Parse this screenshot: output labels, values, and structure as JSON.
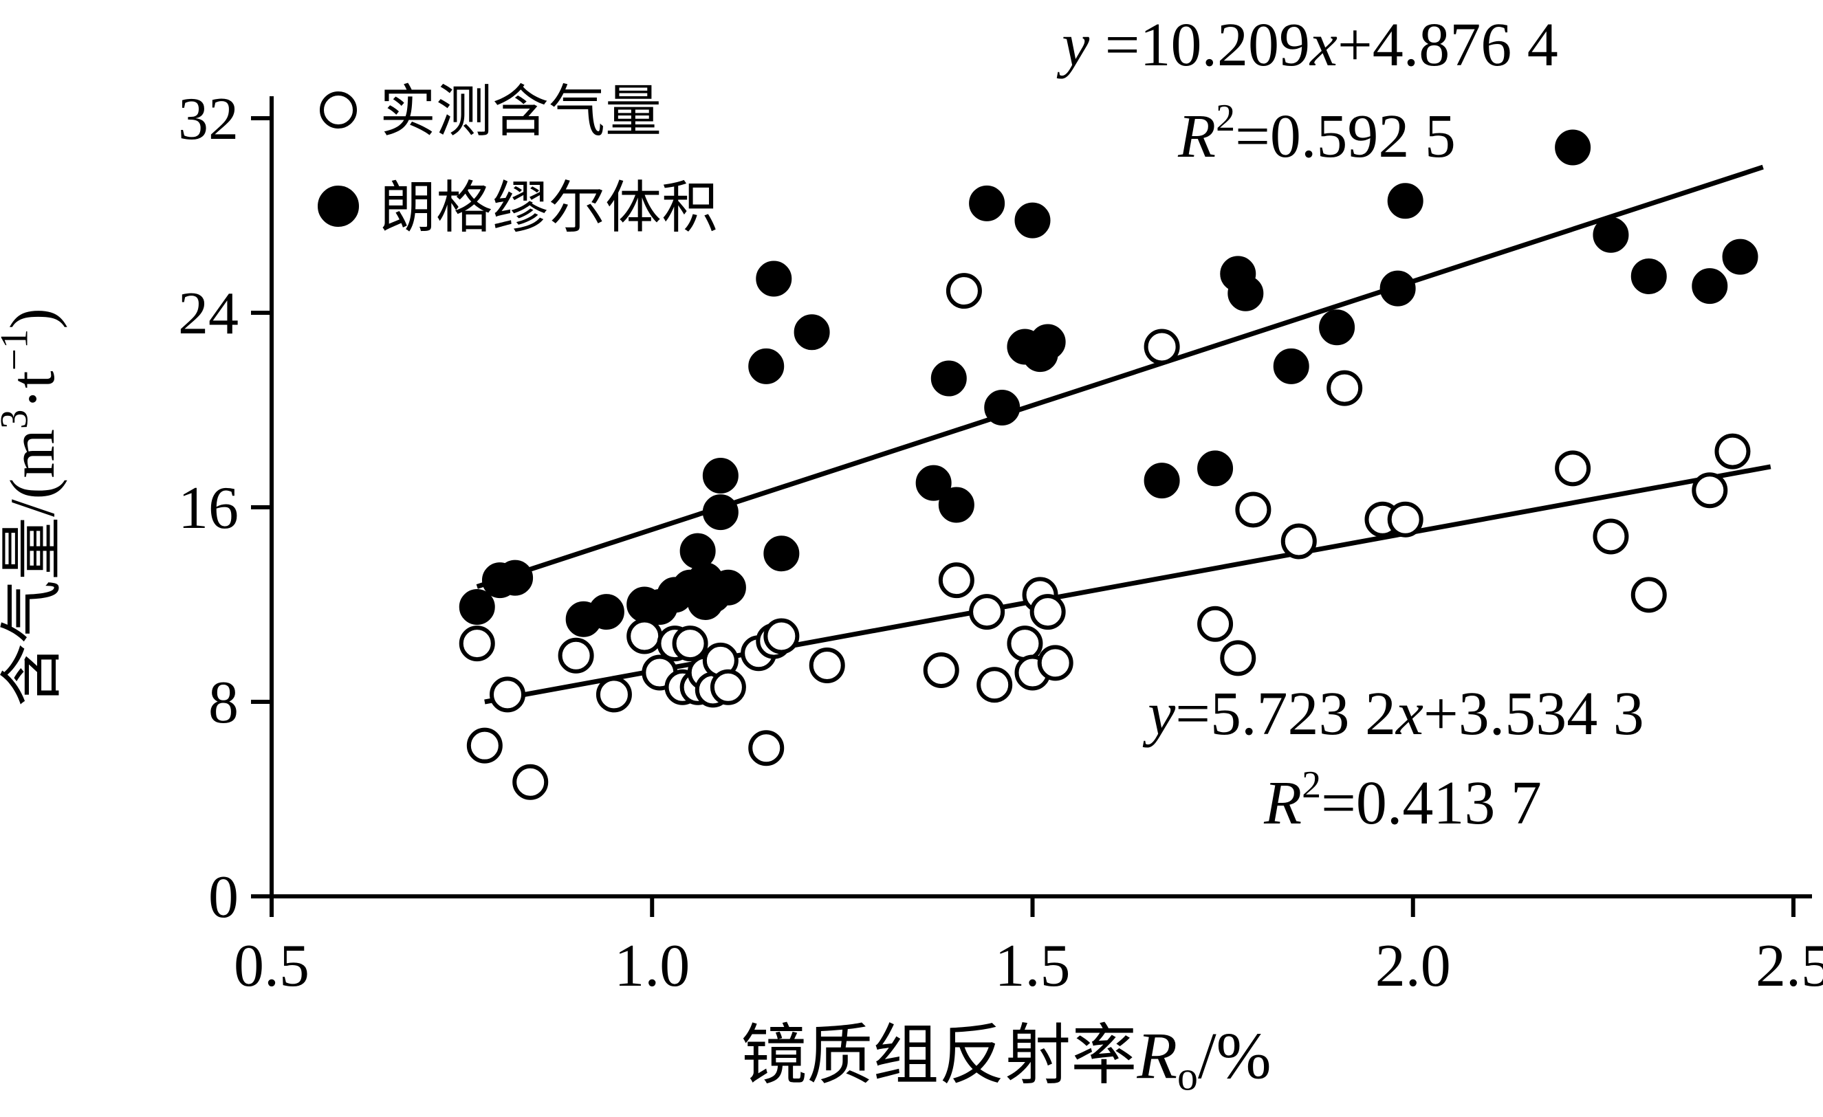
{
  "figure": {
    "kind": "scatter-plot-with-trendlines"
  },
  "chart_data": {
    "type": "scatter",
    "title": "",
    "xlabel": "镜质组反射率Ro/%",
    "ylabel": "含气量/(m3·t-1)",
    "xlabel_segments": [
      {
        "text": "镜质组反射率"
      },
      {
        "text": "R",
        "italic": true
      },
      {
        "text": "o",
        "sub": true
      },
      {
        "text": "/%"
      }
    ],
    "ylabel_segments": [
      {
        "text": "含气量/(m"
      },
      {
        "text": "3",
        "sup": true
      },
      {
        "text": "·t"
      },
      {
        "text": "−1",
        "sup": true
      },
      {
        "text": ")"
      }
    ],
    "xlim": [
      0.5,
      2.5
    ],
    "ylim": [
      0,
      32
    ],
    "x_ticks": [
      0.5,
      1.0,
      1.5,
      2.0,
      2.5
    ],
    "x_tick_labels": [
      "0.5",
      "1.0",
      "1.5",
      "2.0",
      "2.5"
    ],
    "y_ticks": [
      0,
      8,
      16,
      24,
      32
    ],
    "y_tick_labels": [
      "0",
      "8",
      "16",
      "24",
      "32"
    ],
    "grid": false,
    "legend_position": "top-left-inside",
    "legend": {
      "items": [
        {
          "label": "实测含气量",
          "marker": "open"
        },
        {
          "label": "朗格缪尔体积",
          "marker": "filled"
        }
      ]
    },
    "series": [
      {
        "name": "实测含气量",
        "marker": "open",
        "points": [
          [
            0.77,
            10.4
          ],
          [
            0.78,
            6.2
          ],
          [
            0.81,
            8.3
          ],
          [
            0.84,
            4.7
          ],
          [
            0.9,
            9.9
          ],
          [
            0.95,
            8.3
          ],
          [
            0.99,
            10.7
          ],
          [
            1.01,
            9.2
          ],
          [
            1.03,
            10.4
          ],
          [
            1.04,
            8.6
          ],
          [
            1.05,
            10.4
          ],
          [
            1.06,
            8.6
          ],
          [
            1.07,
            9.2
          ],
          [
            1.08,
            8.5
          ],
          [
            1.09,
            9.7
          ],
          [
            1.1,
            8.6
          ],
          [
            1.14,
            10.0
          ],
          [
            1.15,
            6.1
          ],
          [
            1.16,
            10.5
          ],
          [
            1.17,
            10.7
          ],
          [
            1.23,
            9.5
          ],
          [
            1.38,
            9.3
          ],
          [
            1.4,
            13.0
          ],
          [
            1.41,
            24.9
          ],
          [
            1.44,
            11.7
          ],
          [
            1.45,
            8.7
          ],
          [
            1.49,
            10.4
          ],
          [
            1.5,
            9.2
          ],
          [
            1.51,
            12.4
          ],
          [
            1.52,
            11.7
          ],
          [
            1.53,
            9.6
          ],
          [
            1.67,
            22.6
          ],
          [
            1.74,
            11.2
          ],
          [
            1.77,
            9.8
          ],
          [
            1.79,
            15.9
          ],
          [
            1.85,
            14.6
          ],
          [
            1.91,
            20.9
          ],
          [
            1.96,
            15.5
          ],
          [
            1.99,
            15.5
          ],
          [
            2.21,
            17.6
          ],
          [
            2.26,
            14.8
          ],
          [
            2.31,
            12.4
          ],
          [
            2.39,
            16.7
          ],
          [
            2.42,
            18.3
          ]
        ]
      },
      {
        "name": "朗格缪尔体积",
        "marker": "filled",
        "points": [
          [
            0.77,
            11.9
          ],
          [
            0.8,
            13.0
          ],
          [
            0.82,
            13.1
          ],
          [
            0.91,
            11.4
          ],
          [
            0.94,
            11.7
          ],
          [
            0.99,
            12.0
          ],
          [
            1.01,
            11.9
          ],
          [
            1.03,
            12.4
          ],
          [
            1.05,
            12.7
          ],
          [
            1.06,
            14.2
          ],
          [
            1.07,
            12.1
          ],
          [
            1.07,
            13.0
          ],
          [
            1.08,
            12.4
          ],
          [
            1.09,
            15.8
          ],
          [
            1.09,
            17.3
          ],
          [
            1.1,
            12.7
          ],
          [
            1.15,
            21.8
          ],
          [
            1.16,
            25.4
          ],
          [
            1.17,
            14.1
          ],
          [
            1.21,
            23.2
          ],
          [
            1.37,
            17.0
          ],
          [
            1.39,
            21.3
          ],
          [
            1.4,
            16.1
          ],
          [
            1.44,
            28.5
          ],
          [
            1.46,
            20.1
          ],
          [
            1.49,
            22.6
          ],
          [
            1.5,
            27.8
          ],
          [
            1.51,
            22.3
          ],
          [
            1.52,
            22.8
          ],
          [
            1.67,
            17.1
          ],
          [
            1.74,
            17.6
          ],
          [
            1.77,
            25.6
          ],
          [
            1.78,
            24.8
          ],
          [
            1.84,
            21.8
          ],
          [
            1.9,
            23.4
          ],
          [
            1.98,
            25.0
          ],
          [
            1.99,
            28.6
          ],
          [
            2.21,
            30.8
          ],
          [
            2.26,
            27.2
          ],
          [
            2.31,
            25.5
          ],
          [
            2.39,
            25.1
          ],
          [
            2.43,
            26.3
          ]
        ]
      }
    ],
    "trendlines": [
      {
        "series": "朗格缪尔体积",
        "slope": 10.209,
        "intercept": 4.8764,
        "r2": 0.5925,
        "x_range": [
          0.77,
          2.46
        ],
        "equation_text": "y =10.209x+4.876 4",
        "r2_text": "R2=0.592 5"
      },
      {
        "series": "实测含气量",
        "slope": 5.7232,
        "intercept": 3.5343,
        "r2": 0.4137,
        "x_range": [
          0.78,
          2.47
        ],
        "equation_text": "y=5.723 2x+3.534 3",
        "r2_text": "R2=0.413 7"
      }
    ],
    "annotations": [
      {
        "id": "eq1_line1",
        "segments": [
          {
            "text": "y",
            "italic": true
          },
          {
            "text": " =10.209"
          },
          {
            "text": "x",
            "italic": true
          },
          {
            "text": "+4.876 4"
          }
        ]
      },
      {
        "id": "eq1_line2",
        "segments": [
          {
            "text": "R",
            "italic": true
          },
          {
            "text": "2",
            "sup": true
          },
          {
            "text": "=0.592 5"
          }
        ]
      },
      {
        "id": "eq2_line1",
        "segments": [
          {
            "text": "y",
            "italic": true
          },
          {
            "text": "=5.723 2"
          },
          {
            "text": "x",
            "italic": true
          },
          {
            "text": "+3.534 3"
          }
        ]
      },
      {
        "id": "eq2_line2",
        "segments": [
          {
            "text": "R",
            "italic": true
          },
          {
            "text": "2",
            "sup": true
          },
          {
            "text": "=0.413 7"
          }
        ]
      }
    ],
    "colors": {
      "axis": "#000000",
      "marker_fill": "#000000",
      "marker_open_fill": "#ffffff",
      "line": "#000000",
      "background": "#ffffff"
    }
  }
}
